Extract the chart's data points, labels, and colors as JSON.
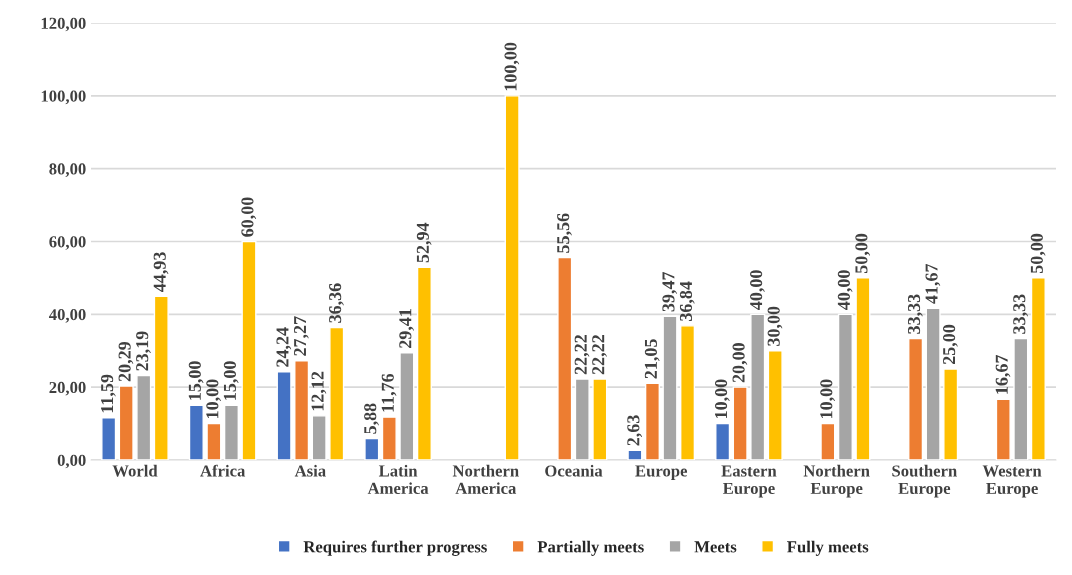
{
  "chart_data": {
    "type": "bar",
    "categories": [
      "World",
      "Africa",
      "Asia",
      "Latin\nAmerica",
      "Northern\nAmerica",
      "Oceania",
      "Europe",
      "Eastern\nEurope",
      "Northern\nEurope",
      "Southern\nEurope",
      "Western\nEurope"
    ],
    "series": [
      {
        "name": "Requires further progress",
        "color": "#4472c4",
        "values": [
          11.59,
          15,
          24.24,
          5.88,
          null,
          null,
          2.63,
          10,
          null,
          null,
          null
        ],
        "value_labels": [
          "11,59",
          "15,00",
          "24,24",
          "5,88",
          null,
          null,
          "2,63",
          "10,00",
          null,
          null,
          null
        ]
      },
      {
        "name": "Partially meets",
        "color": "#ed7d31",
        "values": [
          20.29,
          10,
          27.27,
          11.76,
          null,
          55.56,
          21.05,
          20,
          10,
          33.33,
          16.67
        ],
        "value_labels": [
          "20,29",
          "10,00",
          "27,27",
          "11,76",
          null,
          "55,56",
          "21,05",
          "20,00",
          "10,00",
          "33,33",
          "16,67"
        ]
      },
      {
        "name": "Meets",
        "color": "#a5a5a5",
        "values": [
          23.19,
          15,
          12.12,
          29.41,
          null,
          22.22,
          39.47,
          40,
          40,
          41.67,
          33.33
        ],
        "value_labels": [
          "23,19",
          "15,00",
          "12,12",
          "29,41",
          null,
          "22,22",
          "39,47",
          "40,00",
          "40,00",
          "41,67",
          "33,33"
        ]
      },
      {
        "name": "Fully meets",
        "color": "#ffc000",
        "values": [
          44.93,
          60,
          36.36,
          52.94,
          100,
          22.22,
          36.84,
          30,
          50,
          25,
          50
        ],
        "value_labels": [
          "44,93",
          "60,00",
          "36,36",
          "52,94",
          "100,00",
          "22,22",
          "36,84",
          "30,00",
          "50,00",
          "25,00",
          "50,00"
        ]
      }
    ],
    "ylim": [
      0,
      120
    ],
    "yticks": [
      {
        "value": 0,
        "label": "0,00"
      },
      {
        "value": 20,
        "label": "20,00"
      },
      {
        "value": 40,
        "label": "40,00"
      },
      {
        "value": 60,
        "label": "60,00"
      },
      {
        "value": 80,
        "label": "80,00"
      },
      {
        "value": 100,
        "label": "100,00"
      },
      {
        "value": 120,
        "label": "120,00"
      }
    ],
    "grid": "y",
    "legend": "bottom"
  }
}
